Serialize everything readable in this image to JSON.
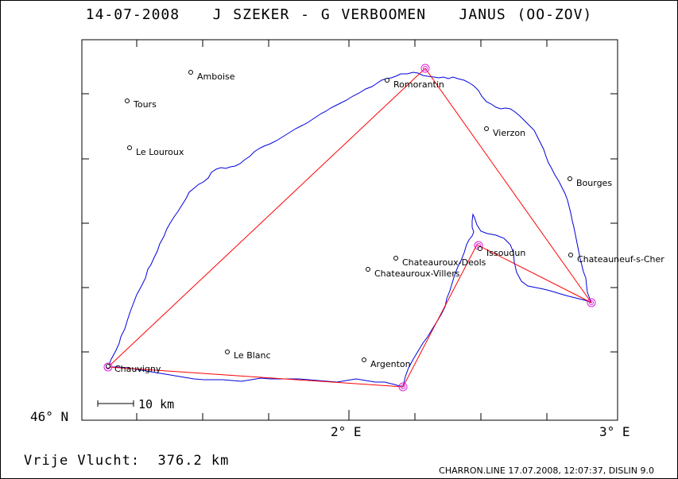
{
  "title": "14-07-2008   J SZEKER - G VERBOOMEN   JANUS (OO-ZOV)",
  "flight_summary": "Vrije Vlucht:  376.2 km",
  "footer_info": "CHARRON.LINE 17.07.2008, 12:07:37, DISLIN 9.0",
  "axes": {
    "lat_label": "46° N",
    "lon_label_2": "2° E",
    "lon_label_3": "3° E"
  },
  "scale": {
    "label": "10 km"
  },
  "towns": [
    {
      "name": "Amboise"
    },
    {
      "name": "Romorantin"
    },
    {
      "name": "Tours"
    },
    {
      "name": "Vierzon"
    },
    {
      "name": "Le Louroux"
    },
    {
      "name": "Bourges"
    },
    {
      "name": "Issoudun"
    },
    {
      "name": "Chateauneuf-s-Cher"
    },
    {
      "name": "Chateauroux-Deols"
    },
    {
      "name": "Chateauroux-Villers"
    },
    {
      "name": "Le Blanc"
    },
    {
      "name": "Argenton"
    },
    {
      "name": "Chauvigny"
    }
  ],
  "colors": {
    "track": "#0000dd",
    "task_line": "#ff0000",
    "turnpoint": "#e020e0",
    "frame": "#000000"
  }
}
